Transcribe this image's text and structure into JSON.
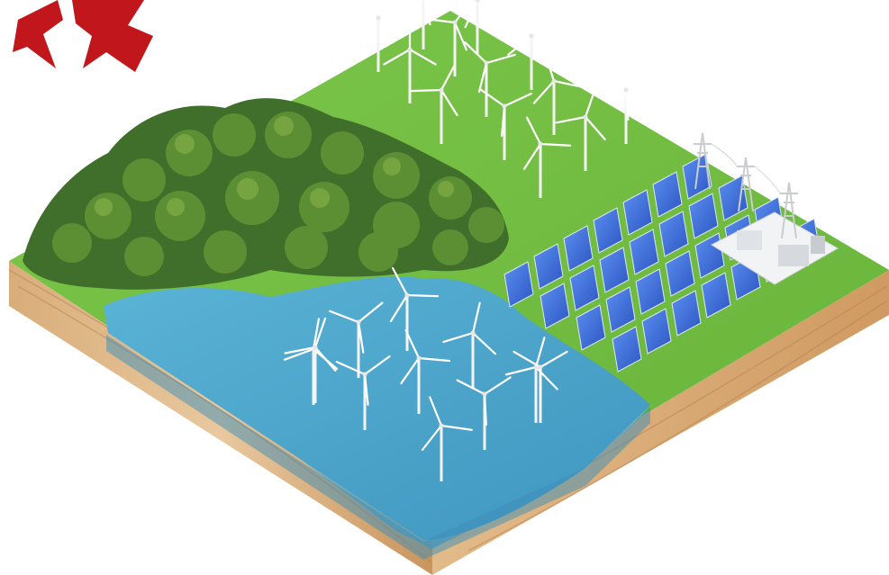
{
  "scene": {
    "colors": {
      "background": "#ffffff",
      "grass": "#76bf45",
      "grass_shadow": "#5a9a32",
      "water": "#4aa3c8",
      "water_deep": "#2f86ad",
      "soil_light": "#e6c49a",
      "soil_dark": "#c9955e",
      "forest": "#3f6f2a",
      "forest_light": "#6e9e3c",
      "solar_panel": "#3a6fd8",
      "turbine": "#f4f4f4",
      "logo_red": "#c1161c",
      "substation": "#eef0f2"
    },
    "elements": {
      "logo": "red-star-logo",
      "forest": "dense-forest",
      "lake": "lake-with-offshore-wind-turbines",
      "onshore_wind_farm": "onshore-wind-turbines",
      "solar_farm": "solar-panel-array",
      "transmission": "power-pylons",
      "substation": "electrical-substation"
    },
    "counts": {
      "onshore_turbines": 13,
      "offshore_turbines": 11,
      "solar_panels": 28,
      "pylons": 3
    }
  }
}
